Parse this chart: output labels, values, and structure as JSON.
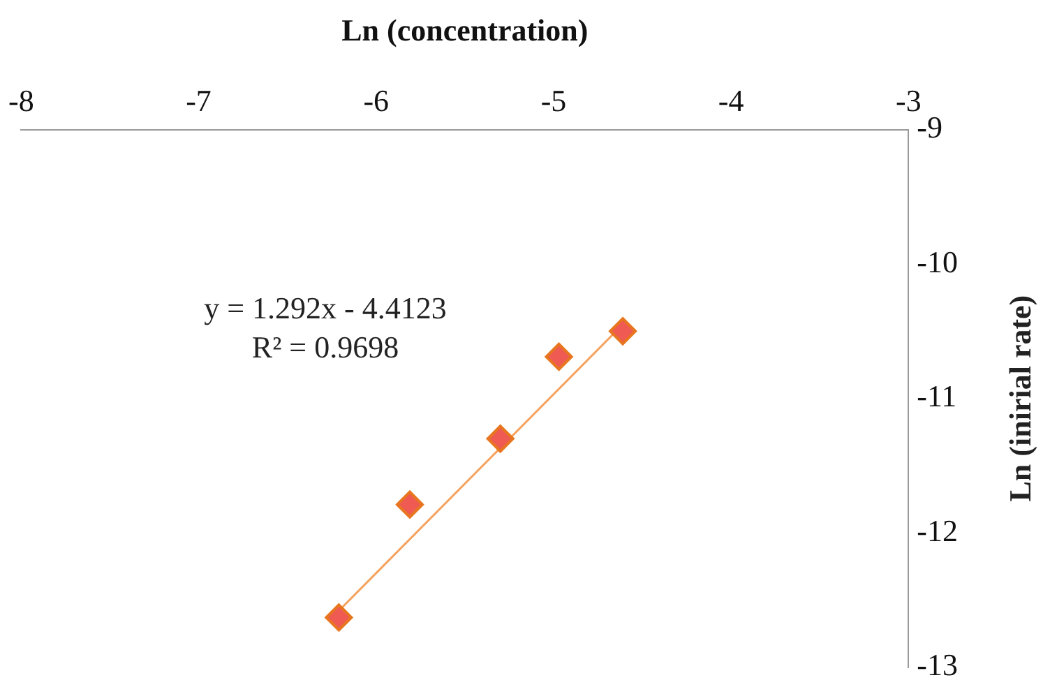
{
  "chart_data": {
    "type": "scatter",
    "xlabel": "Ln (concentration)",
    "ylabel": "Ln (inirial rate)",
    "xlim": [
      -8,
      -3
    ],
    "xticks": [
      -8,
      -7,
      -6,
      -5,
      -4,
      -3
    ],
    "ylim": [
      -13,
      -9
    ],
    "yticks": [
      -9,
      -10,
      -11,
      -12,
      -13
    ],
    "grid": false,
    "legend": false,
    "marker": "diamond",
    "annotations": [
      "y = 1.292x - 4.4123",
      "R² = 0.9698"
    ],
    "series": [
      {
        "color": "#ef5b52",
        "x": [
          -6.21,
          -5.81,
          -5.3,
          -4.97,
          -4.61
        ],
        "values": [
          -12.63,
          -11.79,
          -11.3,
          -10.69,
          -10.5
        ]
      },
      {
        "type": "line",
        "color": "#f5a25e",
        "marker": "none",
        "x": [
          -6.21,
          -4.61
        ],
        "values": [
          -12.58,
          -10.45
        ]
      }
    ]
  }
}
